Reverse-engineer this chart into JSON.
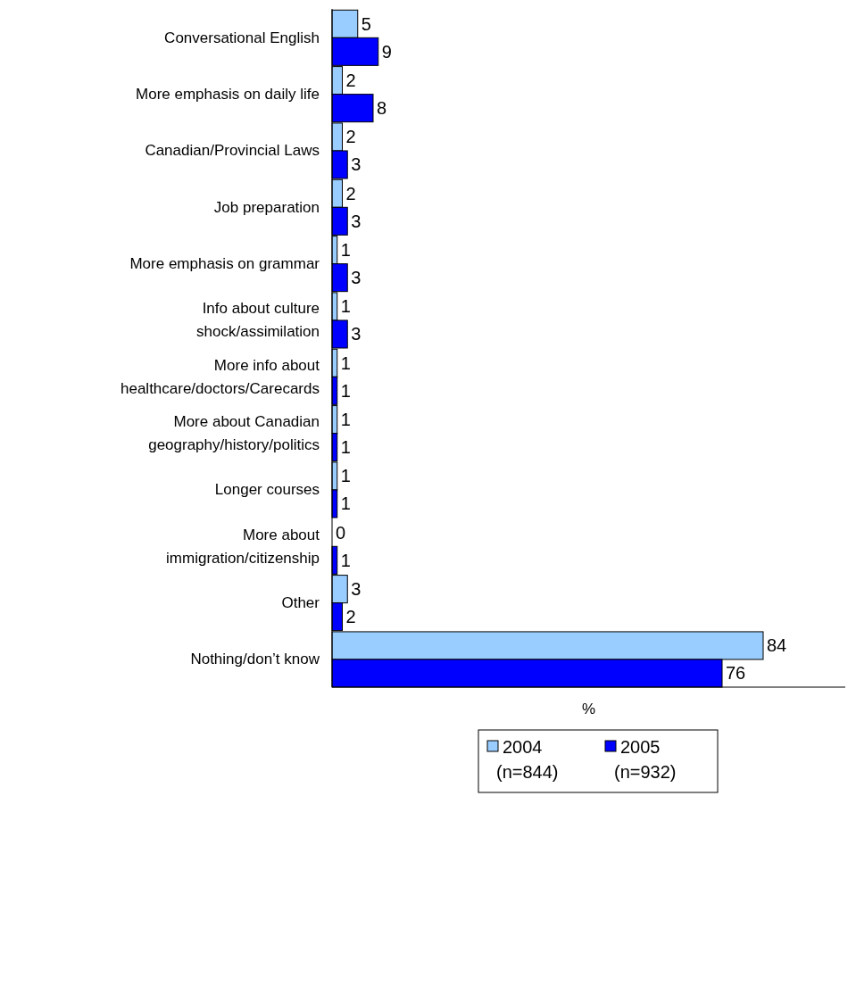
{
  "chart_data": {
    "type": "bar",
    "orientation": "horizontal",
    "categories": [
      "Conversational English",
      "More emphasis on daily life",
      "Canadian/Provincial Laws",
      "Job preparation",
      "More emphasis on grammar",
      "Info about culture\nshock/assimilation",
      "More info about\nhealthcare/doctors/Carecards",
      "More about Canadian\ngeography/history/politics",
      "Longer courses",
      "More about\nimmigration/citizenship",
      "Other",
      "Nothing/don’t know"
    ],
    "series": [
      {
        "name": "2004\n(n=844)",
        "color": "#99ccff",
        "values": [
          5,
          2,
          2,
          2,
          1,
          1,
          1,
          1,
          1,
          0,
          3,
          84
        ]
      },
      {
        "name": "2005\n(n=932)",
        "color": "#0000ff",
        "values": [
          9,
          8,
          3,
          3,
          3,
          3,
          1,
          1,
          1,
          1,
          2,
          76
        ]
      }
    ],
    "xlabel": "%",
    "xlim": [
      0,
      100
    ],
    "data_labels": true,
    "legend": "bottom"
  }
}
